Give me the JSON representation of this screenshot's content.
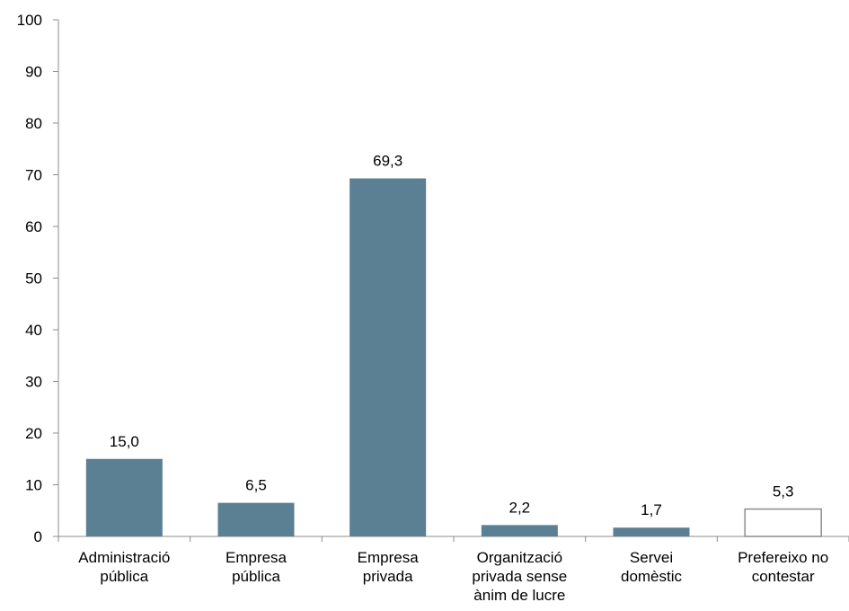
{
  "chart_data": {
    "type": "bar",
    "title": "",
    "xlabel": "",
    "ylabel": "",
    "ylim": [
      0,
      100
    ],
    "yticks": [
      "0",
      "10",
      "20",
      "30",
      "40",
      "50",
      "60",
      "70",
      "80",
      "90",
      "100"
    ],
    "grid": false,
    "legend": "none",
    "categories": [
      [
        "Administració",
        "pública"
      ],
      [
        "Empresa",
        "pública"
      ],
      [
        "Empresa",
        "privada"
      ],
      [
        "Organització",
        "privada sense",
        "ànim de lucre"
      ],
      [
        "Servei",
        "domèstic"
      ],
      [
        "Prefereixo no",
        "contestar"
      ]
    ],
    "values": [
      15.0,
      6.5,
      69.3,
      2.2,
      1.7,
      5.3
    ],
    "data_labels": [
      "15,0",
      "6,5",
      "69,3",
      "2,2",
      "1,7",
      "5,3"
    ],
    "colors": {
      "bar": "#5b7f93",
      "bar_outline_only": "#ffffff",
      "outline": "#8c8c8c"
    },
    "outlined_categories": [
      5
    ]
  }
}
